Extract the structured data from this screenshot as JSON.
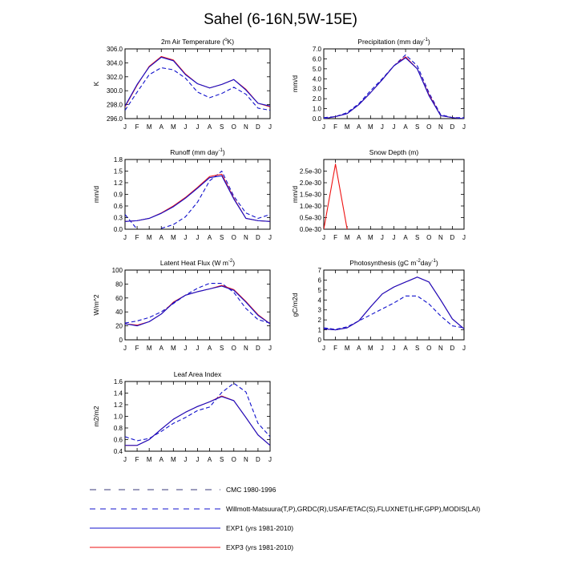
{
  "page": {
    "title": "Sahel (6-16N,5W-15E)"
  },
  "months": [
    "J",
    "F",
    "M",
    "A",
    "M",
    "J",
    "J",
    "A",
    "S",
    "O",
    "N",
    "D",
    "J"
  ],
  "colors": {
    "exp1": "#1010cc",
    "exp3": "#ee1111",
    "ref": "#1010cc",
    "axis": "#000000"
  },
  "legend": [
    {
      "label": "CMC 1980-1996",
      "style": "longdash",
      "color": "#3a3a7a"
    },
    {
      "label": "Willmott-Matsuura(T,P),GRDC(R),USAF/ETAC(S),FLUXNET(LHF,GPP),MODIS(LAI)",
      "style": "dash",
      "color": "#1010cc"
    },
    {
      "label": "EXP1 (yrs 1981-2010)",
      "style": "solid",
      "color": "#1010cc"
    },
    {
      "label": "EXP3 (yrs 1981-2010)",
      "style": "solid",
      "color": "#ee1111"
    }
  ],
  "chart_data": [
    {
      "id": "temp",
      "type": "line",
      "title": "2m Air Temperature (°K)",
      "title_parts": [
        {
          "t": "2m Air Temperature ("
        },
        {
          "t": "o",
          "sup": true
        },
        {
          "t": "K)"
        }
      ],
      "ylabel": "K",
      "ylim": [
        296,
        306
      ],
      "yticks": [
        296,
        298,
        300,
        302,
        304,
        306
      ],
      "ydec": 1,
      "series": [
        {
          "name": "Willmott-Matsuura",
          "style": "dash",
          "values": [
            297.2,
            299.8,
            302.3,
            303.3,
            303.0,
            301.8,
            299.8,
            299.0,
            299.6,
            300.5,
            299.5,
            297.5,
            297.2
          ]
        },
        {
          "name": "EXP3 (yrs 1981-2010)",
          "style": "solid",
          "color_key": "exp3",
          "values": [
            297.7,
            300.8,
            303.5,
            304.9,
            304.4,
            302.4,
            301.0,
            300.4,
            300.9,
            301.6,
            300.2,
            298.2,
            297.7
          ]
        },
        {
          "name": "EXP1 (yrs 1981-2010)",
          "style": "solid",
          "color_key": "exp1",
          "values": [
            297.8,
            300.9,
            303.4,
            304.8,
            304.3,
            302.3,
            301.0,
            300.4,
            300.9,
            301.6,
            300.1,
            298.2,
            297.8
          ]
        }
      ]
    },
    {
      "id": "precip",
      "type": "line",
      "title": "Precipitation (mm day-1)",
      "title_parts": [
        {
          "t": "Precipitation (mm day"
        },
        {
          "t": "-1",
          "sup": true
        },
        {
          "t": ")"
        }
      ],
      "ylabel": "mm/d",
      "ylim": [
        0,
        7
      ],
      "yticks": [
        0,
        1,
        2,
        3,
        4,
        5,
        6,
        7
      ],
      "ydec": 1,
      "series": [
        {
          "name": "Willmott-Matsuura",
          "style": "dash",
          "values": [
            0.1,
            0.2,
            0.6,
            1.5,
            2.8,
            4.0,
            5.3,
            6.4,
            5.3,
            2.6,
            0.4,
            0.1,
            0.1
          ]
        },
        {
          "name": "EXP3 (yrs 1981-2010)",
          "style": "solid",
          "color_key": "exp3",
          "values": [
            0.0,
            0.2,
            0.5,
            1.4,
            2.6,
            3.9,
            5.3,
            6.2,
            5.0,
            2.4,
            0.3,
            0.1,
            0.0
          ]
        },
        {
          "name": "EXP1 (yrs 1981-2010)",
          "style": "solid",
          "color_key": "exp1",
          "values": [
            0.0,
            0.2,
            0.5,
            1.4,
            2.6,
            3.9,
            5.3,
            6.1,
            5.0,
            2.3,
            0.3,
            0.1,
            0.0
          ]
        }
      ]
    },
    {
      "id": "runoff",
      "type": "line",
      "title": "Runoff (mm day-1)",
      "title_parts": [
        {
          "t": "Runoff (mm day"
        },
        {
          "t": "-1",
          "sup": true
        },
        {
          "t": ")"
        }
      ],
      "ylabel": "mm/d",
      "ylim": [
        0,
        1.8
      ],
      "yticks": [
        0,
        0.3,
        0.6,
        0.9,
        1.2,
        1.5,
        1.8
      ],
      "ydec": 1,
      "series": [
        {
          "name": "GRDC",
          "style": "dash",
          "values": [
            0.38,
            0.0,
            null,
            0.02,
            0.12,
            0.32,
            0.7,
            1.25,
            1.5,
            0.85,
            0.42,
            0.28,
            0.38
          ]
        },
        {
          "name": "EXP3 (yrs 1981-2010)",
          "style": "solid",
          "color_key": "exp3",
          "values": [
            0.2,
            0.22,
            0.28,
            0.42,
            0.6,
            0.82,
            1.08,
            1.36,
            1.42,
            0.8,
            0.28,
            0.22,
            0.2
          ]
        },
        {
          "name": "EXP1 (yrs 1981-2010)",
          "style": "solid",
          "color_key": "exp1",
          "values": [
            0.2,
            0.22,
            0.28,
            0.41,
            0.58,
            0.8,
            1.06,
            1.33,
            1.38,
            0.78,
            0.28,
            0.22,
            0.2
          ]
        }
      ]
    },
    {
      "id": "snow",
      "type": "line",
      "title": "Snow Depth (m)",
      "title_parts": [
        {
          "t": "Snow Depth (m)"
        }
      ],
      "ylabel": "mm/d",
      "ylim": [
        0,
        3e-30
      ],
      "yticks": [
        0,
        5e-31,
        1e-30,
        1.5e-30,
        2e-30,
        2.5e-30
      ],
      "ytick_labels": [
        "0.0e-30",
        "0.5e-30",
        "1.0e-30",
        "1.5e-30",
        "2.0e-30",
        "2.5e-30"
      ],
      "series": [
        {
          "name": "EXP3 (yrs 1981-2010)",
          "style": "solid",
          "color_key": "exp3",
          "values": [
            0,
            2.8e-30,
            0,
            null,
            null,
            null,
            null,
            null,
            null,
            null,
            null,
            null,
            null
          ]
        }
      ]
    },
    {
      "id": "lhf",
      "type": "line",
      "title": "Latent Heat Flux (W m-2)",
      "title_parts": [
        {
          "t": "Latent Heat Flux (W m"
        },
        {
          "t": "-2",
          "sup": true
        },
        {
          "t": ")"
        }
      ],
      "ylabel": "W/m^2",
      "ylim": [
        0,
        100
      ],
      "yticks": [
        0,
        20,
        40,
        60,
        80,
        100
      ],
      "ydec": 0,
      "series": [
        {
          "name": "FLUXNET",
          "style": "dash",
          "values": [
            24,
            27,
            32,
            40,
            52,
            64,
            74,
            81,
            81,
            68,
            45,
            29,
            24
          ]
        },
        {
          "name": "EXP3 (yrs 1981-2010)",
          "style": "solid",
          "color_key": "exp3",
          "values": [
            23,
            21,
            26,
            37,
            54,
            64,
            69,
            73,
            78,
            72,
            55,
            36,
            23
          ]
        },
        {
          "name": "EXP1 (yrs 1981-2010)",
          "style": "solid",
          "color_key": "exp1",
          "values": [
            23,
            20,
            26,
            37,
            53,
            64,
            69,
            73,
            77,
            71,
            54,
            35,
            23
          ]
        }
      ]
    },
    {
      "id": "gpp",
      "type": "line",
      "title": "Photosynthesis (gC m-2day-1)",
      "title_parts": [
        {
          "t": "Photosynthesis (gC m"
        },
        {
          "t": "-2",
          "sup": true
        },
        {
          "t": "day"
        },
        {
          "t": "-1",
          "sup": true
        },
        {
          "t": ")"
        }
      ],
      "ylabel": "gC/m2d",
      "ylim": [
        0,
        7
      ],
      "yticks": [
        0,
        1,
        2,
        3,
        4,
        5,
        6,
        7
      ],
      "ydec": 0,
      "series": [
        {
          "name": "FLUXNET",
          "style": "dash",
          "values": [
            1.2,
            1.05,
            1.3,
            1.9,
            2.5,
            3.1,
            3.7,
            4.4,
            4.4,
            3.6,
            2.4,
            1.4,
            1.2
          ]
        },
        {
          "name": "EXP3 (yrs 1981-2010)",
          "style": "solid",
          "color_key": "exp3",
          "values": [
            1.1,
            1.0,
            1.2,
            1.9,
            3.3,
            4.6,
            5.3,
            5.8,
            6.3,
            5.8,
            4.0,
            2.1,
            1.1
          ]
        },
        {
          "name": "EXP1 (yrs 1981-2010)",
          "style": "solid",
          "color_key": "exp1",
          "values": [
            1.1,
            1.0,
            1.2,
            1.9,
            3.3,
            4.6,
            5.3,
            5.8,
            6.3,
            5.8,
            4.0,
            2.1,
            1.1
          ]
        }
      ]
    },
    {
      "id": "lai",
      "type": "line",
      "title": "Leaf Area Index",
      "title_parts": [
        {
          "t": "Leaf Area Index"
        }
      ],
      "ylabel": "m2/m2",
      "ylim": [
        0.4,
        1.6
      ],
      "yticks": [
        0.4,
        0.6,
        0.8,
        1.0,
        1.2,
        1.4,
        1.6
      ],
      "ydec": 1,
      "series": [
        {
          "name": "MODIS",
          "style": "dash",
          "values": [
            0.65,
            0.58,
            0.62,
            0.74,
            0.88,
            0.98,
            1.1,
            1.16,
            1.41,
            1.57,
            1.42,
            0.88,
            0.65
          ]
        },
        {
          "name": "EXP3 (yrs 1981-2010)",
          "style": "solid",
          "color_key": "exp3",
          "values": [
            0.5,
            0.5,
            0.6,
            0.78,
            0.95,
            1.07,
            1.17,
            1.25,
            1.35,
            1.27,
            0.98,
            0.68,
            0.5
          ]
        },
        {
          "name": "EXP1 (yrs 1981-2010)",
          "style": "solid",
          "color_key": "exp1",
          "values": [
            0.5,
            0.5,
            0.6,
            0.78,
            0.95,
            1.07,
            1.17,
            1.25,
            1.34,
            1.27,
            0.98,
            0.68,
            0.5
          ]
        }
      ]
    }
  ]
}
